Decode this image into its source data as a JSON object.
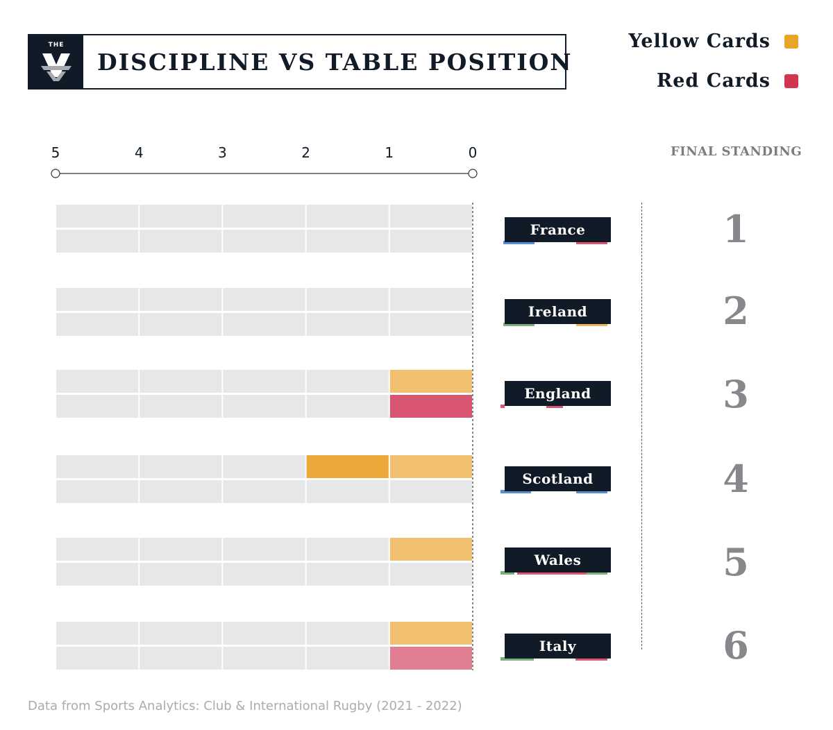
{
  "title": "DISCIPLINE VS TABLE POSITION",
  "logo_text": "THE",
  "legend": [
    {
      "label": "Yellow Cards",
      "color": "#eaa32b"
    },
    {
      "label": "Red Cards",
      "color": "#d3344f"
    }
  ],
  "standing_header": "FINAL STANDING",
  "source": "Data from Sports Analytics: Club & International Rugby (2021 - 2022)",
  "chart_data": {
    "type": "bar",
    "orientation": "horizontal",
    "x_axis_ticks": [
      "5",
      "4",
      "3",
      "2",
      "1",
      "0"
    ],
    "xlim": [
      5,
      0
    ],
    "categories": [
      "France",
      "Ireland",
      "England",
      "Scotland",
      "Wales",
      "Italy"
    ],
    "final_standing": [
      "1",
      "2",
      "3",
      "4",
      "5",
      "6"
    ],
    "series": [
      {
        "name": "Yellow Cards",
        "color": "#eaa32b",
        "values": [
          0,
          0,
          1,
          2,
          1,
          1
        ]
      },
      {
        "name": "Red Cards",
        "color": "#d3344f",
        "values": [
          0,
          0,
          1,
          0,
          0,
          1
        ]
      }
    ]
  }
}
